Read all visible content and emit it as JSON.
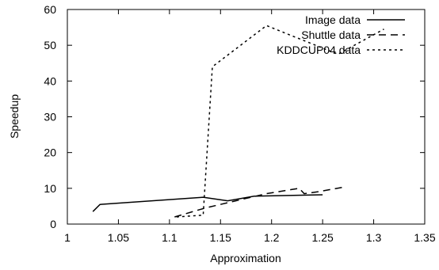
{
  "chart_data": {
    "type": "line",
    "title": "",
    "xlabel": "Approximation",
    "ylabel": "Speedup",
    "xlim": [
      1,
      1.35
    ],
    "ylim": [
      0,
      60
    ],
    "xticks": [
      "1",
      "1.05",
      "1.1",
      "1.15",
      "1.2",
      "1.25",
      "1.3",
      "1.35"
    ],
    "yticks": [
      "0",
      "10",
      "20",
      "30",
      "40",
      "50",
      "60"
    ],
    "grid": false,
    "legend_position": "top-right",
    "series": [
      {
        "name": "Image data",
        "style": "solid",
        "color": "#000000",
        "x": [
          1.025,
          1.032,
          1.133,
          1.157,
          1.183,
          1.25
        ],
        "y": [
          3.5,
          5.5,
          7.5,
          6.5,
          7.8,
          8.2
        ]
      },
      {
        "name": "Shuttle data",
        "style": "dashed",
        "color": "#000000",
        "x": [
          1.105,
          1.135,
          1.165,
          1.195,
          1.227,
          1.232,
          1.245,
          1.27
        ],
        "y": [
          2.0,
          4.5,
          6.5,
          8.5,
          10.0,
          8.5,
          9.0,
          10.3
        ]
      },
      {
        "name": "KDDCUP04 data",
        "style": "dotted",
        "color": "#000000",
        "x": [
          1.107,
          1.133,
          1.142,
          1.195,
          1.265,
          1.31
        ],
        "y": [
          2.0,
          2.5,
          44.0,
          55.5,
          47.5,
          54.5
        ]
      }
    ]
  }
}
